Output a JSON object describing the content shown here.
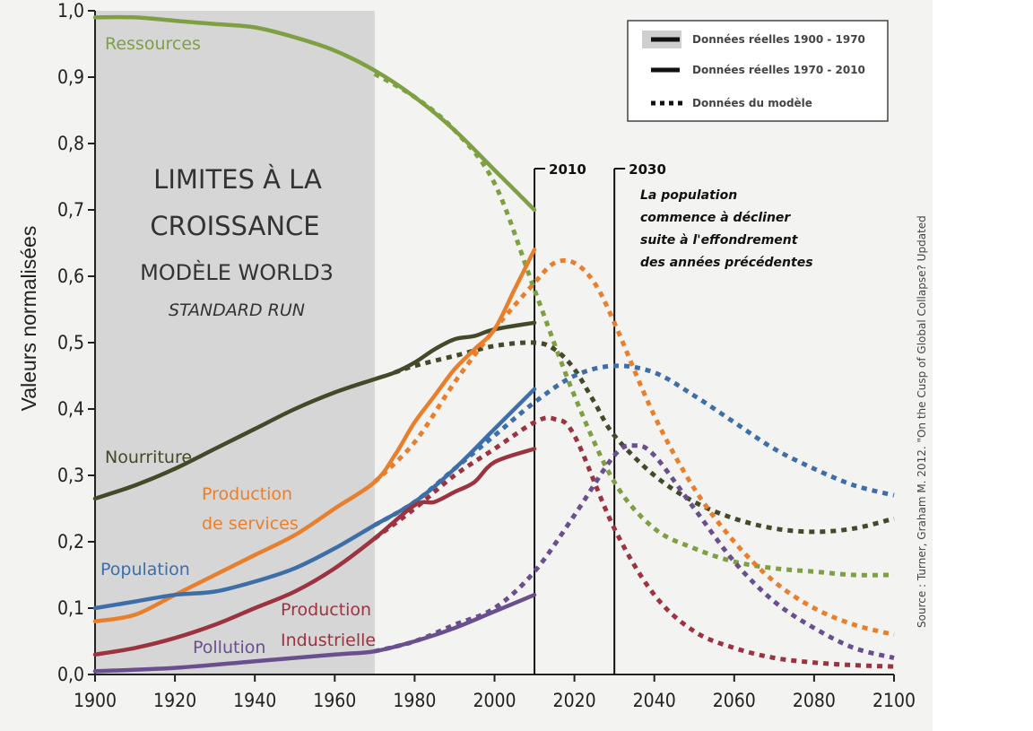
{
  "chart_data": {
    "type": "line",
    "title_lines": [
      "LIMITES À LA",
      "CROISSANCE",
      "MODÈLE WORLD3",
      "STANDARD RUN"
    ],
    "ylabel": "Valeurs normalisées",
    "xlim": [
      1900,
      2100
    ],
    "ylim": [
      0,
      1
    ],
    "x_ticks": [
      "1900",
      "1920",
      "1940",
      "1960",
      "1980",
      "2000",
      "2020",
      "2040",
      "2060",
      "2080",
      "2100"
    ],
    "y_ticks": [
      "0,0",
      "0,1",
      "0,2",
      "0,3",
      "0,4",
      "0,5",
      "0,6",
      "0,7",
      "0,8",
      "0,9",
      "1,0"
    ],
    "historical_period": [
      1900,
      1970
    ],
    "legend": [
      {
        "label": "Données réelles 1900 - 1970",
        "style": "solid"
      },
      {
        "label": "Données réelles 1970 - 2010",
        "style": "solid"
      },
      {
        "label": "Données du modèle",
        "style": "dotted"
      }
    ],
    "markers": [
      {
        "year": 2010,
        "label": "2010"
      },
      {
        "year": 2030,
        "label": "2030"
      }
    ],
    "annotation_lines": [
      "La population",
      "commence à décliner",
      "suite à l'effondrement",
      "des années précédentes"
    ],
    "source": "Source : Turner, Graham M. 2012. \"On the Cusp of Global Collapse? Updated",
    "series": [
      {
        "name": "Ressources",
        "color": "#7ea043",
        "real": [
          [
            1900,
            0.99
          ],
          [
            1910,
            0.99
          ],
          [
            1920,
            0.985
          ],
          [
            1930,
            0.98
          ],
          [
            1940,
            0.975
          ],
          [
            1950,
            0.96
          ],
          [
            1960,
            0.94
          ],
          [
            1970,
            0.91
          ],
          [
            1980,
            0.87
          ],
          [
            1990,
            0.82
          ],
          [
            2000,
            0.76
          ],
          [
            2010,
            0.7
          ]
        ],
        "model": [
          [
            1970,
            0.905
          ],
          [
            1980,
            0.87
          ],
          [
            1990,
            0.82
          ],
          [
            2000,
            0.74
          ],
          [
            2010,
            0.58
          ],
          [
            2020,
            0.42
          ],
          [
            2030,
            0.29
          ],
          [
            2040,
            0.22
          ],
          [
            2050,
            0.19
          ],
          [
            2060,
            0.17
          ],
          [
            2070,
            0.16
          ],
          [
            2080,
            0.155
          ],
          [
            2090,
            0.15
          ],
          [
            2100,
            0.15
          ]
        ]
      },
      {
        "name": "Nourriture",
        "color": "#424a2a",
        "real": [
          [
            1900,
            0.265
          ],
          [
            1910,
            0.285
          ],
          [
            1920,
            0.31
          ],
          [
            1930,
            0.34
          ],
          [
            1940,
            0.37
          ],
          [
            1950,
            0.4
          ],
          [
            1960,
            0.425
          ],
          [
            1970,
            0.445
          ],
          [
            1975,
            0.455
          ],
          [
            1980,
            0.47
          ],
          [
            1985,
            0.49
          ],
          [
            1990,
            0.505
          ],
          [
            1995,
            0.51
          ],
          [
            2000,
            0.52
          ],
          [
            2010,
            0.53
          ]
        ],
        "model": [
          [
            1975,
            0.455
          ],
          [
            1980,
            0.465
          ],
          [
            1990,
            0.48
          ],
          [
            2000,
            0.495
          ],
          [
            2010,
            0.5
          ],
          [
            2015,
            0.49
          ],
          [
            2020,
            0.46
          ],
          [
            2025,
            0.41
          ],
          [
            2030,
            0.36
          ],
          [
            2040,
            0.3
          ],
          [
            2050,
            0.26
          ],
          [
            2060,
            0.235
          ],
          [
            2070,
            0.22
          ],
          [
            2080,
            0.215
          ],
          [
            2090,
            0.22
          ],
          [
            2100,
            0.235
          ]
        ]
      },
      {
        "name": "Production de services",
        "color": "#e87f2c",
        "real": [
          [
            1900,
            0.08
          ],
          [
            1910,
            0.09
          ],
          [
            1920,
            0.12
          ],
          [
            1930,
            0.15
          ],
          [
            1940,
            0.18
          ],
          [
            1950,
            0.21
          ],
          [
            1960,
            0.25
          ],
          [
            1970,
            0.29
          ],
          [
            1975,
            0.33
          ],
          [
            1980,
            0.38
          ],
          [
            1985,
            0.42
          ],
          [
            1990,
            0.46
          ],
          [
            1995,
            0.49
          ],
          [
            2000,
            0.52
          ],
          [
            2005,
            0.58
          ],
          [
            2010,
            0.64
          ]
        ],
        "model": [
          [
            1970,
            0.29
          ],
          [
            1980,
            0.35
          ],
          [
            1990,
            0.44
          ],
          [
            2000,
            0.52
          ],
          [
            2010,
            0.59
          ],
          [
            2015,
            0.62
          ],
          [
            2020,
            0.62
          ],
          [
            2025,
            0.59
          ],
          [
            2030,
            0.53
          ],
          [
            2040,
            0.39
          ],
          [
            2050,
            0.28
          ],
          [
            2060,
            0.2
          ],
          [
            2070,
            0.14
          ],
          [
            2080,
            0.1
          ],
          [
            2090,
            0.075
          ],
          [
            2100,
            0.06
          ]
        ]
      },
      {
        "name": "Population",
        "color": "#3e6ea8",
        "real": [
          [
            1900,
            0.1
          ],
          [
            1910,
            0.11
          ],
          [
            1920,
            0.12
          ],
          [
            1930,
            0.125
          ],
          [
            1940,
            0.14
          ],
          [
            1950,
            0.16
          ],
          [
            1960,
            0.19
          ],
          [
            1970,
            0.225
          ],
          [
            1980,
            0.26
          ],
          [
            1990,
            0.31
          ],
          [
            2000,
            0.37
          ],
          [
            2010,
            0.43
          ]
        ],
        "model": [
          [
            1970,
            0.225
          ],
          [
            1980,
            0.26
          ],
          [
            1990,
            0.31
          ],
          [
            2000,
            0.36
          ],
          [
            2010,
            0.41
          ],
          [
            2020,
            0.45
          ],
          [
            2030,
            0.465
          ],
          [
            2040,
            0.455
          ],
          [
            2050,
            0.42
          ],
          [
            2060,
            0.38
          ],
          [
            2070,
            0.34
          ],
          [
            2080,
            0.31
          ],
          [
            2090,
            0.285
          ],
          [
            2100,
            0.27
          ]
        ]
      },
      {
        "name": "Production Industrielle",
        "color": "#9b3340",
        "real": [
          [
            1900,
            0.03
          ],
          [
            1910,
            0.04
          ],
          [
            1920,
            0.055
          ],
          [
            1930,
            0.075
          ],
          [
            1940,
            0.1
          ],
          [
            1950,
            0.125
          ],
          [
            1960,
            0.16
          ],
          [
            1970,
            0.205
          ],
          [
            1980,
            0.255
          ],
          [
            1985,
            0.26
          ],
          [
            1990,
            0.275
          ],
          [
            1995,
            0.29
          ],
          [
            2000,
            0.32
          ],
          [
            2010,
            0.34
          ]
        ],
        "model": [
          [
            1970,
            0.205
          ],
          [
            1980,
            0.25
          ],
          [
            1990,
            0.3
          ],
          [
            2000,
            0.34
          ],
          [
            2010,
            0.38
          ],
          [
            2015,
            0.385
          ],
          [
            2020,
            0.36
          ],
          [
            2030,
            0.22
          ],
          [
            2040,
            0.12
          ],
          [
            2050,
            0.065
          ],
          [
            2060,
            0.04
          ],
          [
            2070,
            0.025
          ],
          [
            2080,
            0.018
          ],
          [
            2090,
            0.014
          ],
          [
            2100,
            0.012
          ]
        ]
      },
      {
        "name": "Pollution",
        "color": "#6a4f8e",
        "real": [
          [
            1900,
            0.005
          ],
          [
            1920,
            0.01
          ],
          [
            1940,
            0.02
          ],
          [
            1960,
            0.03
          ],
          [
            1970,
            0.035
          ],
          [
            1980,
            0.05
          ],
          [
            1990,
            0.07
          ],
          [
            2000,
            0.095
          ],
          [
            2010,
            0.12
          ]
        ],
        "model": [
          [
            1970,
            0.035
          ],
          [
            1980,
            0.05
          ],
          [
            1990,
            0.075
          ],
          [
            2000,
            0.1
          ],
          [
            2010,
            0.155
          ],
          [
            2020,
            0.24
          ],
          [
            2030,
            0.33
          ],
          [
            2035,
            0.345
          ],
          [
            2040,
            0.33
          ],
          [
            2050,
            0.25
          ],
          [
            2060,
            0.17
          ],
          [
            2070,
            0.11
          ],
          [
            2080,
            0.07
          ],
          [
            2090,
            0.04
          ],
          [
            2100,
            0.025
          ]
        ]
      }
    ],
    "label_lines": {
      "Ressources": [
        "Ressources"
      ],
      "Nourriture": [
        "Nourriture"
      ],
      "Production de services": [
        "Production",
        "de services"
      ],
      "Population": [
        "Population"
      ],
      "Production Industrielle": [
        "Production",
        "Industrielle"
      ],
      "Pollution": [
        "Pollution"
      ]
    }
  }
}
